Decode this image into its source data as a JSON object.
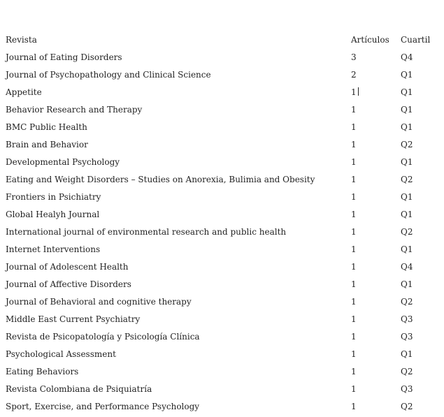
{
  "table": {
    "headers": [
      "Revista",
      "Artículos",
      "Cuartil"
    ],
    "rows": [
      [
        "Journal of Eating Disorders",
        "3",
        "Q4"
      ],
      [
        "Journal of Psychopathology and Clinical Science",
        "2",
        "Q1"
      ],
      [
        "Appetite",
        "1",
        "Q1"
      ],
      [
        "Behavior Research and Therapy",
        "1",
        "Q1"
      ],
      [
        "BMC Public Health",
        "1",
        "Q1"
      ],
      [
        "Brain and Behavior",
        "1",
        "Q2"
      ],
      [
        "Developmental Psychology",
        "1",
        "Q1"
      ],
      [
        "Eating and Weight Disorders – Studies on Anorexia, Bulimia and Obesity",
        "1",
        "Q2"
      ],
      [
        "Frontiers in Psichiatry",
        "1",
        "Q1"
      ],
      [
        "Global Healyh Journal",
        "1",
        "Q1"
      ],
      [
        "International journal of environmental research and public health",
        "1",
        "Q2"
      ],
      [
        "Internet Interventions",
        "1",
        "Q1"
      ],
      [
        "Journal of Adolescent Health",
        "1",
        "Q4"
      ],
      [
        "Journal of Affective Disorders",
        "1",
        "Q1"
      ],
      [
        "Journal of Behavioral and cognitive therapy",
        "1",
        "Q2"
      ],
      [
        "Middle East Current Psychiatry",
        "1",
        "Q3"
      ],
      [
        "Revista de Psicopatología y Psicología Clínica",
        "1",
        "Q3"
      ],
      [
        "Psychological Assessment",
        "1",
        "Q1"
      ],
      [
        "Eating Behaviors",
        "1",
        "Q2"
      ],
      [
        "Revista Colombiana de Psiquiatría",
        "1",
        "Q3"
      ],
      [
        "Sport, Exercise, and Performance Psychology",
        "1",
        "Q2"
      ]
    ]
  }
}
